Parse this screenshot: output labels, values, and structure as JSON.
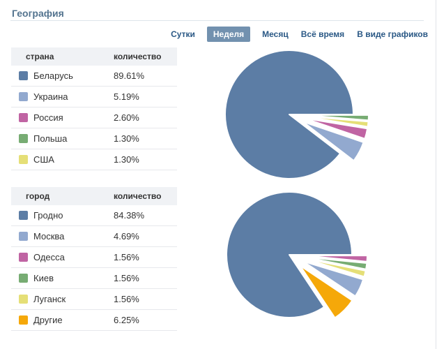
{
  "page": {
    "title": "География"
  },
  "colors": {
    "link": "#2a5885",
    "selected_tab_bg": "#7291af",
    "title_text": "#54748f",
    "divider": "#dde4ea",
    "table_header_bg": "#f0f2f5",
    "row_border": "#e7e8ec",
    "text": "#333333"
  },
  "tabs": [
    {
      "name": "day",
      "label": "Сутки",
      "selected": false
    },
    {
      "name": "week",
      "label": "Неделя",
      "selected": true
    },
    {
      "name": "month",
      "label": "Месяц",
      "selected": false
    },
    {
      "name": "all-time",
      "label": "Всё время",
      "selected": false
    },
    {
      "name": "as-graphs",
      "label": "В виде графиков",
      "selected": false
    }
  ],
  "tables": [
    {
      "id": "country",
      "headers": {
        "label": "страна",
        "value": "количество"
      },
      "rows": [
        {
          "slug": "belarus",
          "label": "Беларусь",
          "value": "89.61%",
          "color": "#5c7da5"
        },
        {
          "slug": "ukraine",
          "label": "Украина",
          "value": "5.19%",
          "color": "#92a9cf"
        },
        {
          "slug": "russia",
          "label": "Россия",
          "value": "2.60%",
          "color": "#c064a3"
        },
        {
          "slug": "poland",
          "label": "Польша",
          "value": "1.30%",
          "color": "#77ac73"
        },
        {
          "slug": "usa",
          "label": "США",
          "value": "1.30%",
          "color": "#e5df77"
        }
      ]
    },
    {
      "id": "city",
      "headers": {
        "label": "город",
        "value": "количество"
      },
      "rows": [
        {
          "slug": "grodno",
          "label": "Гродно",
          "value": "84.38%",
          "color": "#5c7da5"
        },
        {
          "slug": "moscow",
          "label": "Москва",
          "value": "4.69%",
          "color": "#92a9cf"
        },
        {
          "slug": "odessa",
          "label": "Одесса",
          "value": "1.56%",
          "color": "#c064a3"
        },
        {
          "slug": "kiev",
          "label": "Киев",
          "value": "1.56%",
          "color": "#77ac73"
        },
        {
          "slug": "lugansk",
          "label": "Луганск",
          "value": "1.56%",
          "color": "#e5df77"
        },
        {
          "slug": "others",
          "label": "Другие",
          "value": "6.25%",
          "color": "#f5a809"
        }
      ]
    }
  ],
  "chart_data": [
    {
      "type": "pie",
      "id": "country",
      "legend_title": "страна",
      "labels": [
        "Беларусь",
        "Украина",
        "Россия",
        "Польша",
        "США"
      ],
      "slugs": [
        "belarus",
        "ukraine",
        "russia",
        "poland",
        "usa"
      ],
      "values": [
        89.61,
        5.19,
        2.6,
        1.3,
        1.3
      ],
      "colors": [
        "#5c7da5",
        "#92a9cf",
        "#c064a3",
        "#77ac73",
        "#e5df77"
      ],
      "draw_order": [
        3,
        4,
        2,
        1,
        0
      ],
      "exploded": [
        false,
        true,
        true,
        true,
        true
      ],
      "start_angle_deg": 0,
      "direction": "clockwise",
      "legend_position": "left-table"
    },
    {
      "type": "pie",
      "id": "city",
      "legend_title": "город",
      "labels": [
        "Гродно",
        "Москва",
        "Одесса",
        "Киев",
        "Луганск",
        "Другие"
      ],
      "slugs": [
        "grodno",
        "moscow",
        "odessa",
        "kiev",
        "lugansk",
        "others"
      ],
      "values": [
        84.38,
        4.69,
        1.56,
        1.56,
        1.56,
        6.25
      ],
      "colors": [
        "#5c7da5",
        "#92a9cf",
        "#c064a3",
        "#77ac73",
        "#e5df77",
        "#f5a809"
      ],
      "draw_order": [
        2,
        3,
        4,
        1,
        5,
        0
      ],
      "exploded": [
        false,
        true,
        true,
        true,
        true,
        true
      ],
      "start_angle_deg": 0,
      "direction": "clockwise",
      "legend_position": "left-table"
    }
  ]
}
